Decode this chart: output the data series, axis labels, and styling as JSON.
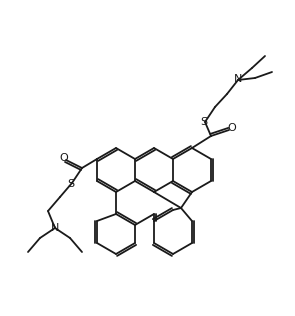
{
  "bg_color": "#ffffff",
  "line_color": "#1a1a1a",
  "line_width": 1.3,
  "doffset": 2.2,
  "figsize": [
    2.95,
    3.16
  ],
  "dpi": 100,
  "core_bonds": [
    [
      192,
      148,
      211,
      159,
      false
    ],
    [
      211,
      159,
      211,
      181,
      true
    ],
    [
      211,
      181,
      192,
      192,
      false
    ],
    [
      192,
      192,
      173,
      181,
      true
    ],
    [
      173,
      181,
      173,
      159,
      false
    ],
    [
      173,
      159,
      192,
      148,
      true
    ],
    [
      173,
      159,
      154,
      148,
      false
    ],
    [
      154,
      148,
      135,
      159,
      true
    ],
    [
      135,
      159,
      135,
      181,
      false
    ],
    [
      135,
      181,
      154,
      192,
      true
    ],
    [
      154,
      192,
      173,
      181,
      false
    ],
    [
      192,
      192,
      181,
      208,
      false
    ],
    [
      181,
      208,
      154,
      192,
      false
    ],
    [
      135,
      159,
      116,
      148,
      false
    ],
    [
      116,
      148,
      97,
      159,
      true
    ],
    [
      97,
      159,
      97,
      181,
      false
    ],
    [
      97,
      181,
      116,
      192,
      true
    ],
    [
      116,
      192,
      135,
      181,
      false
    ],
    [
      181,
      208,
      192,
      221,
      false
    ],
    [
      192,
      221,
      192,
      243,
      true
    ],
    [
      192,
      243,
      173,
      254,
      false
    ],
    [
      173,
      254,
      154,
      243,
      true
    ],
    [
      154,
      243,
      154,
      221,
      false
    ],
    [
      154,
      221,
      173,
      210,
      true
    ],
    [
      173,
      210,
      181,
      208,
      false
    ],
    [
      116,
      192,
      116,
      214,
      false
    ],
    [
      116,
      214,
      135,
      225,
      true
    ],
    [
      135,
      225,
      154,
      214,
      false
    ],
    [
      154,
      214,
      154,
      221,
      true
    ],
    [
      135,
      225,
      135,
      243,
      false
    ],
    [
      135,
      243,
      116,
      254,
      true
    ],
    [
      116,
      254,
      97,
      243,
      false
    ],
    [
      97,
      243,
      97,
      221,
      true
    ],
    [
      97,
      221,
      116,
      214,
      false
    ]
  ]
}
